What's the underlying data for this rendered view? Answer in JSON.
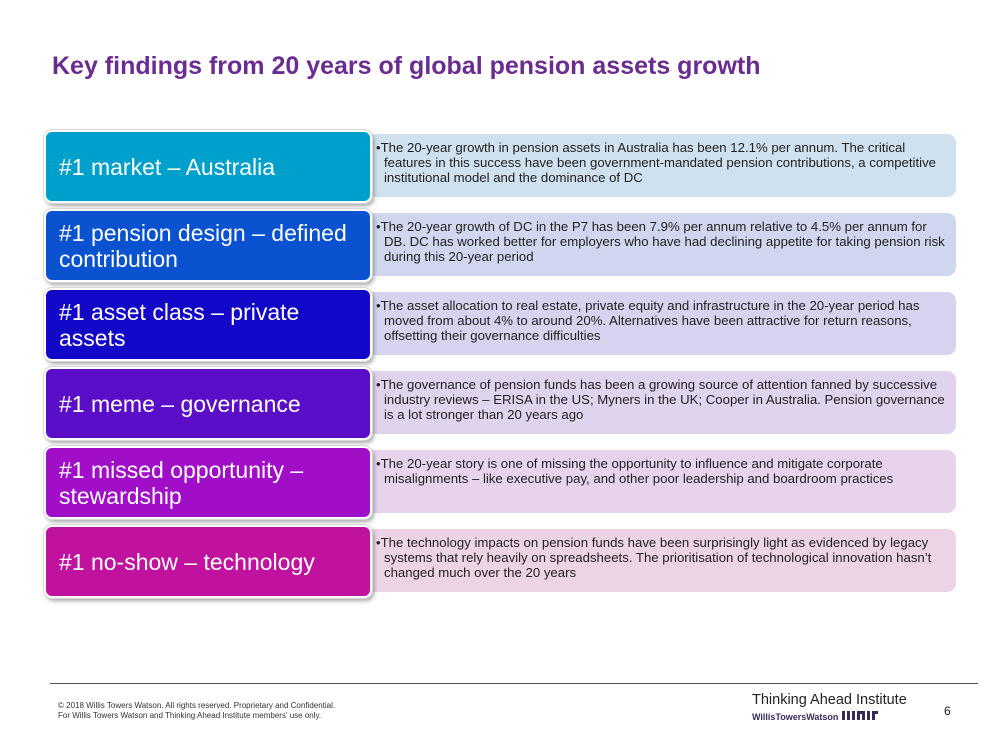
{
  "title": "Key findings from 20 years of global pension assets growth",
  "findings": [
    {
      "label": "#1 market – Australia",
      "text": "•The 20-year growth in pension assets in Australia has been 12.1% per annum. The critical features in this success have been government-mandated pension contributions, a competitive institutional model and the dominance of DC",
      "label_color": "#00a0cc",
      "desc_bg": "#cfe0ee"
    },
    {
      "label": "#1 pension design – defined contribution",
      "text": "•The 20-year growth of DC in the P7 has been 7.9% per annum relative to 4.5% per annum for DB. DC has worked better for employers who have had declining appetite for taking pension risk during this 20-year period",
      "label_color": "#0a52d0",
      "desc_bg": "#d0d6ee"
    },
    {
      "label": "#1 asset class – private assets",
      "text": "•The asset allocation to real estate, private equity and infrastructure in the 20-year period has moved from about 4% to around 20%. Alternatives have been attractive for return reasons, offsetting their governance difficulties",
      "label_color": "#1307c8",
      "desc_bg": "#d6d3ee"
    },
    {
      "label": "#1 meme – governance",
      "text": "•The governance of pension funds has been a growing source of attention fanned by successive industry reviews – ERISA in the US; Myners in the UK; Cooper in Australia. Pension governance is a lot stronger than 20 years ago",
      "label_color": "#5a0ec8",
      "desc_bg": "#dfd3ee"
    },
    {
      "label": "#1 missed opportunity – stewardship",
      "text": "•The 20-year story is one of missing the opportunity to influence and mitigate corporate misalignments – like executive pay, and other poor leadership and boardroom practices",
      "label_color": "#a10ec8",
      "desc_bg": "#e8d3ec"
    },
    {
      "label": "#1 no-show – technology",
      "text": "•The technology impacts on pension funds have been surprisingly light as evidenced by legacy systems that rely heavily on spreadsheets. The prioritisation of technological innovation hasn’t changed much over the 20 years",
      "label_color": "#c0129e",
      "desc_bg": "#ecd3e6"
    }
  ],
  "footer": {
    "copyright_line1": "© 2018 Willis Towers Watson. All rights reserved. Proprietary and Confidential.",
    "copyright_line2": "For Willis Towers Watson and Thinking Ahead Institute members' use only.",
    "institute": "Thinking Ahead Institute",
    "company": "WillisTowersWatson",
    "page_number": "6"
  }
}
